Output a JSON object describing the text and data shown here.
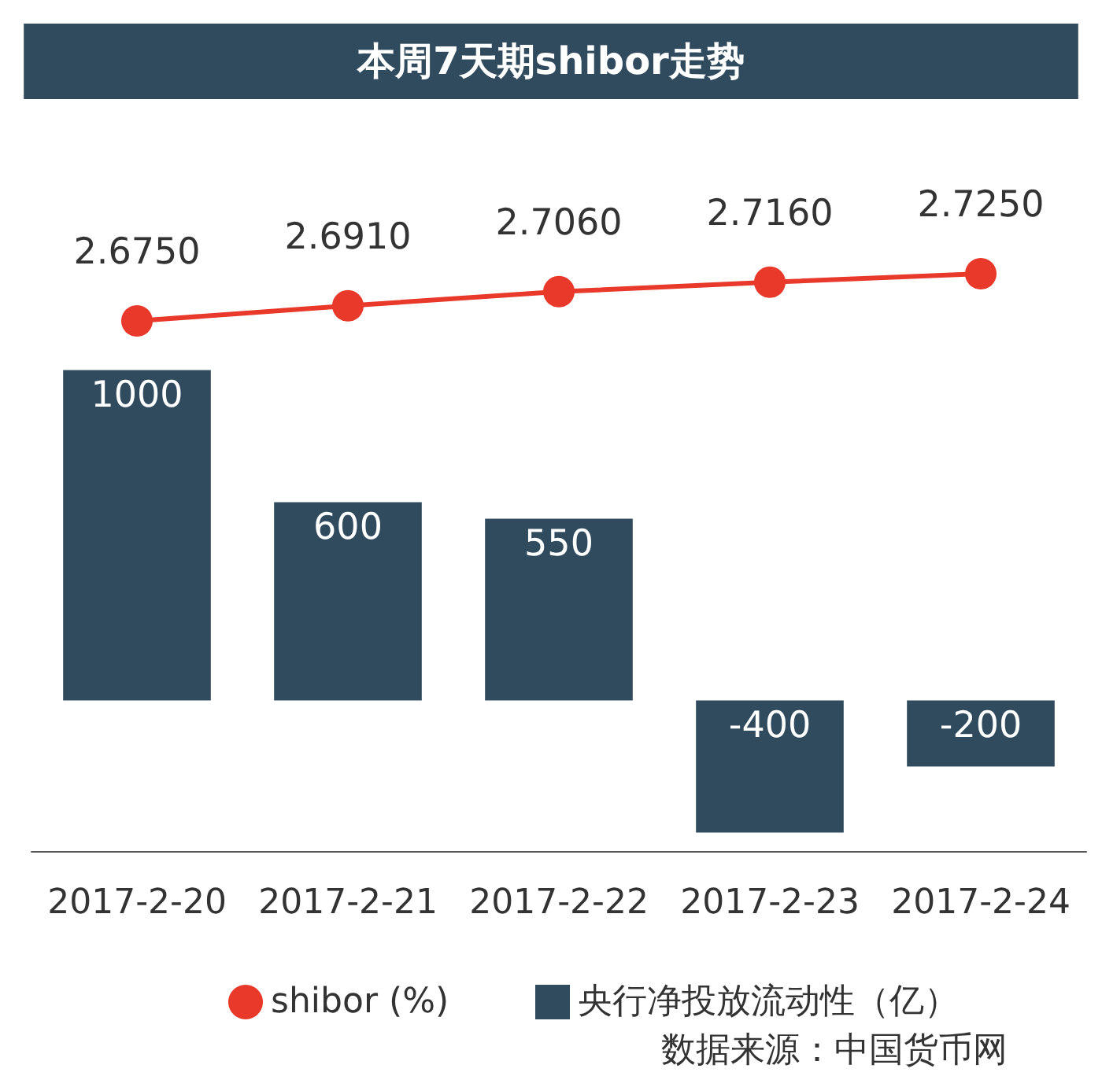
{
  "chart_data": [
    {
      "type": "line",
      "title": "本周7天期shibor走势",
      "categories": [
        "2017-2-20",
        "2017-2-21",
        "2017-2-22",
        "2017-2-23",
        "2017-2-24"
      ],
      "series": [
        {
          "name": "shibor (%)",
          "color": "#e8392b",
          "values": [
            2.675,
            2.691,
            2.706,
            2.716,
            2.725
          ],
          "value_labels": [
            "2.6750",
            "2.6910",
            "2.7060",
            "2.7160",
            "2.7250"
          ]
        }
      ],
      "marker": "circle",
      "legend": "bottom",
      "tick_labels": false
    },
    {
      "type": "bar",
      "categories": [
        "2017-2-20",
        "2017-2-21",
        "2017-2-22",
        "2017-2-23",
        "2017-2-24"
      ],
      "series": [
        {
          "name": "央行净投放流动性（亿）",
          "color": "#2f4b5d",
          "values": [
            1000,
            600,
            550,
            -400,
            -200
          ],
          "value_labels": [
            "1000",
            "600",
            "550",
            "-400",
            "-200"
          ]
        }
      ],
      "legend": "bottom",
      "tick_labels": "x",
      "annotations": [
        "数据来源：中国货币网"
      ]
    }
  ]
}
